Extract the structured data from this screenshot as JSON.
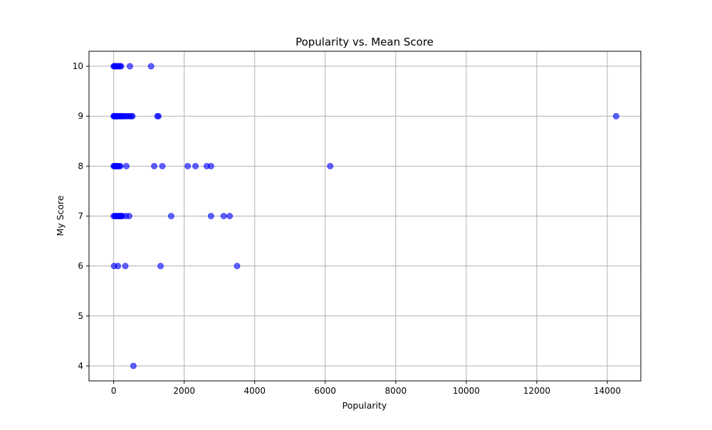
{
  "chart_data": {
    "type": "scatter",
    "title": "Popularity vs. Mean Score",
    "xlabel": "Popularity",
    "ylabel": "My Score",
    "xlim": [
      -700,
      14950
    ],
    "ylim": [
      3.7,
      10.3
    ],
    "xticks": [
      0,
      2000,
      4000,
      6000,
      8000,
      10000,
      12000,
      14000
    ],
    "yticks": [
      4,
      5,
      6,
      7,
      8,
      9,
      10
    ],
    "grid": true,
    "legend": "none",
    "marker_color": "#0000ff",
    "marker_alpha": 0.6,
    "points": [
      {
        "x": 0,
        "y": 10
      },
      {
        "x": 20,
        "y": 10
      },
      {
        "x": 40,
        "y": 10
      },
      {
        "x": 60,
        "y": 10
      },
      {
        "x": 90,
        "y": 10
      },
      {
        "x": 120,
        "y": 10
      },
      {
        "x": 150,
        "y": 10
      },
      {
        "x": 180,
        "y": 10
      },
      {
        "x": 210,
        "y": 10
      },
      {
        "x": 460,
        "y": 10
      },
      {
        "x": 1060,
        "y": 10
      },
      {
        "x": 0,
        "y": 9
      },
      {
        "x": 10,
        "y": 9
      },
      {
        "x": 25,
        "y": 9
      },
      {
        "x": 40,
        "y": 9
      },
      {
        "x": 60,
        "y": 9
      },
      {
        "x": 80,
        "y": 9
      },
      {
        "x": 100,
        "y": 9
      },
      {
        "x": 130,
        "y": 9
      },
      {
        "x": 160,
        "y": 9
      },
      {
        "x": 190,
        "y": 9
      },
      {
        "x": 220,
        "y": 9
      },
      {
        "x": 260,
        "y": 9
      },
      {
        "x": 300,
        "y": 9
      },
      {
        "x": 350,
        "y": 9
      },
      {
        "x": 400,
        "y": 9
      },
      {
        "x": 450,
        "y": 9
      },
      {
        "x": 500,
        "y": 9
      },
      {
        "x": 530,
        "y": 9
      },
      {
        "x": 1240,
        "y": 9
      },
      {
        "x": 1270,
        "y": 9
      },
      {
        "x": 14250,
        "y": 9
      },
      {
        "x": 0,
        "y": 8
      },
      {
        "x": 20,
        "y": 8
      },
      {
        "x": 40,
        "y": 8
      },
      {
        "x": 60,
        "y": 8
      },
      {
        "x": 80,
        "y": 8
      },
      {
        "x": 100,
        "y": 8
      },
      {
        "x": 130,
        "y": 8
      },
      {
        "x": 160,
        "y": 8
      },
      {
        "x": 190,
        "y": 8
      },
      {
        "x": 360,
        "y": 8
      },
      {
        "x": 1150,
        "y": 8
      },
      {
        "x": 1380,
        "y": 8
      },
      {
        "x": 2100,
        "y": 8
      },
      {
        "x": 2320,
        "y": 8
      },
      {
        "x": 2640,
        "y": 8
      },
      {
        "x": 2760,
        "y": 8
      },
      {
        "x": 6140,
        "y": 8
      },
      {
        "x": 0,
        "y": 7
      },
      {
        "x": 30,
        "y": 7
      },
      {
        "x": 60,
        "y": 7
      },
      {
        "x": 90,
        "y": 7
      },
      {
        "x": 120,
        "y": 7
      },
      {
        "x": 150,
        "y": 7
      },
      {
        "x": 180,
        "y": 7
      },
      {
        "x": 200,
        "y": 7
      },
      {
        "x": 220,
        "y": 7
      },
      {
        "x": 250,
        "y": 7
      },
      {
        "x": 350,
        "y": 7
      },
      {
        "x": 440,
        "y": 7
      },
      {
        "x": 1630,
        "y": 7
      },
      {
        "x": 2760,
        "y": 7
      },
      {
        "x": 3120,
        "y": 7
      },
      {
        "x": 3290,
        "y": 7
      },
      {
        "x": 10,
        "y": 6
      },
      {
        "x": 120,
        "y": 6
      },
      {
        "x": 330,
        "y": 6
      },
      {
        "x": 1330,
        "y": 6
      },
      {
        "x": 3500,
        "y": 6
      },
      {
        "x": 560,
        "y": 4
      }
    ]
  }
}
